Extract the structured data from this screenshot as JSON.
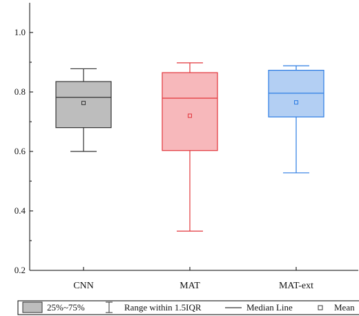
{
  "chart_data": {
    "type": "box",
    "categories": [
      "CNN",
      "MAT",
      "MAT-ext"
    ],
    "ylim": [
      0.2,
      1.1
    ],
    "yticks": [
      "0.2",
      "0.4",
      "0.6",
      "0.8",
      "1.0"
    ],
    "xlabel": "",
    "ylabel": "",
    "grid": false,
    "legend_position": "bottom",
    "boxes": [
      {
        "label": "CNN",
        "whisker_low": 0.6,
        "q1": 0.68,
        "median": 0.782,
        "q3": 0.835,
        "whisker_high": 0.878,
        "mean": 0.763,
        "color": "#333333",
        "fill": "#bdbdbd"
      },
      {
        "label": "MAT",
        "whisker_low": 0.332,
        "q1": 0.603,
        "median": 0.779,
        "q3": 0.865,
        "whisker_high": 0.898,
        "mean": 0.72,
        "color": "#e2353b",
        "fill": "#f7b8bb"
      },
      {
        "label": "MAT-ext",
        "whisker_low": 0.528,
        "q1": 0.716,
        "median": 0.796,
        "q3": 0.873,
        "whisker_high": 0.888,
        "mean": 0.765,
        "color": "#2a7be3",
        "fill": "#b3cff3"
      }
    ],
    "legend": {
      "box_label": "25%~75%",
      "range_label": "Range within 1.5IQR",
      "median_label": "Median Line",
      "mean_label": "Mean"
    }
  }
}
